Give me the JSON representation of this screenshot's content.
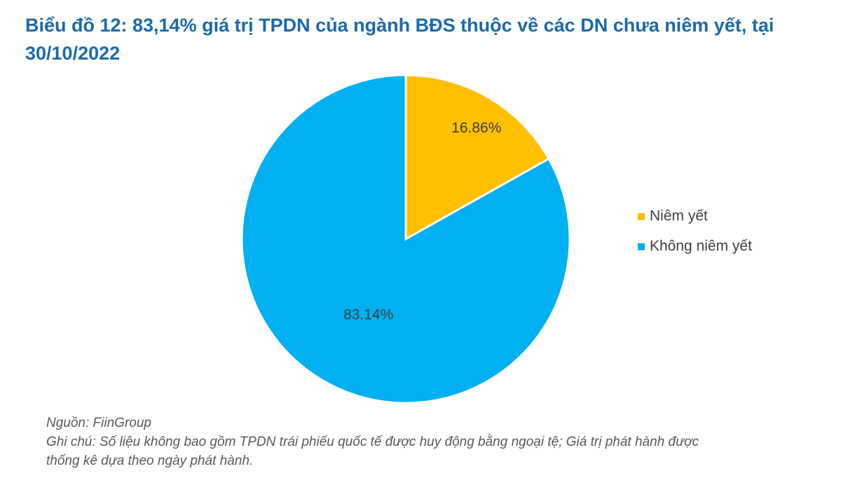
{
  "chart_data": {
    "type": "pie",
    "title": "Biểu đồ 12: 83,14% giá trị TPDN của ngành BĐS thuộc về các DN chưa niêm yết, tại 30/10/2022",
    "categories": [
      "Niêm yết",
      "Không niêm yết"
    ],
    "values": [
      16.86,
      83.14
    ],
    "value_labels": [
      "16.86%",
      "83.14%"
    ],
    "colors": [
      "#FFC000",
      "#00B0F0"
    ],
    "legend": "right",
    "source": "Nguồn: FiinGroup",
    "note": "Ghi chú: Số liệu không bao gồm TPDN trái phiếu quốc tế được huy động bằng ngoại tệ; Giá trị phát hành được thống kê dựa theo ngày phát hành."
  }
}
